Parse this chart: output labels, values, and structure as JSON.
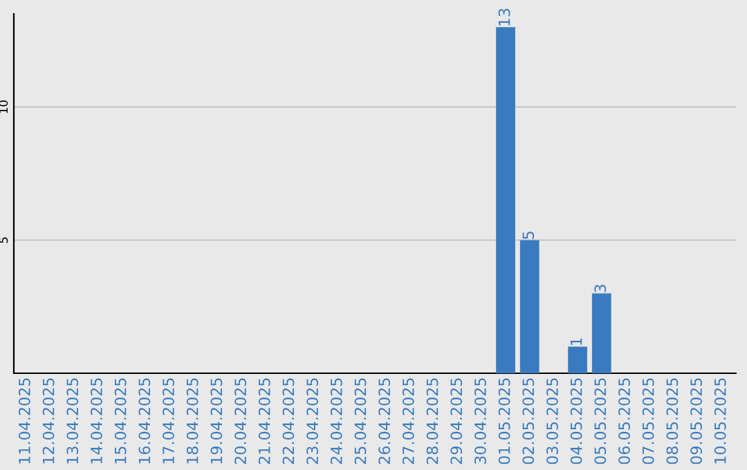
{
  "chart_data": {
    "type": "bar",
    "categories": [
      "11.04.2025",
      "12.04.2025",
      "13.04.2025",
      "14.04.2025",
      "15.04.2025",
      "16.04.2025",
      "17.04.2025",
      "18.04.2025",
      "19.04.2025",
      "20.04.2025",
      "21.04.2025",
      "22.04.2025",
      "23.04.2025",
      "24.04.2025",
      "25.04.2025",
      "26.04.2025",
      "27.04.2025",
      "28.04.2025",
      "29.04.2025",
      "30.04.2025",
      "01.05.2025",
      "02.05.2025",
      "03.05.2025",
      "04.05.2025",
      "05.05.2025",
      "06.05.2025",
      "07.05.2025",
      "08.05.2025",
      "09.05.2025",
      "10.05.2025"
    ],
    "values": [
      0,
      0,
      0,
      0,
      0,
      0,
      0,
      0,
      0,
      0,
      0,
      0,
      0,
      0,
      0,
      0,
      0,
      0,
      0,
      0,
      13,
      5,
      0,
      1,
      3,
      0,
      0,
      0,
      0,
      0
    ],
    "value_labels": [
      null,
      null,
      null,
      null,
      null,
      null,
      null,
      null,
      null,
      null,
      null,
      null,
      null,
      null,
      null,
      null,
      null,
      null,
      null,
      null,
      "13",
      "5",
      null,
      "1",
      "3",
      null,
      null,
      null,
      null,
      null
    ],
    "color": "#3a7bbf",
    "ylim": [
      0,
      13.5
    ],
    "yticks": [
      5,
      10
    ],
    "grid": "y",
    "legend": false
  }
}
